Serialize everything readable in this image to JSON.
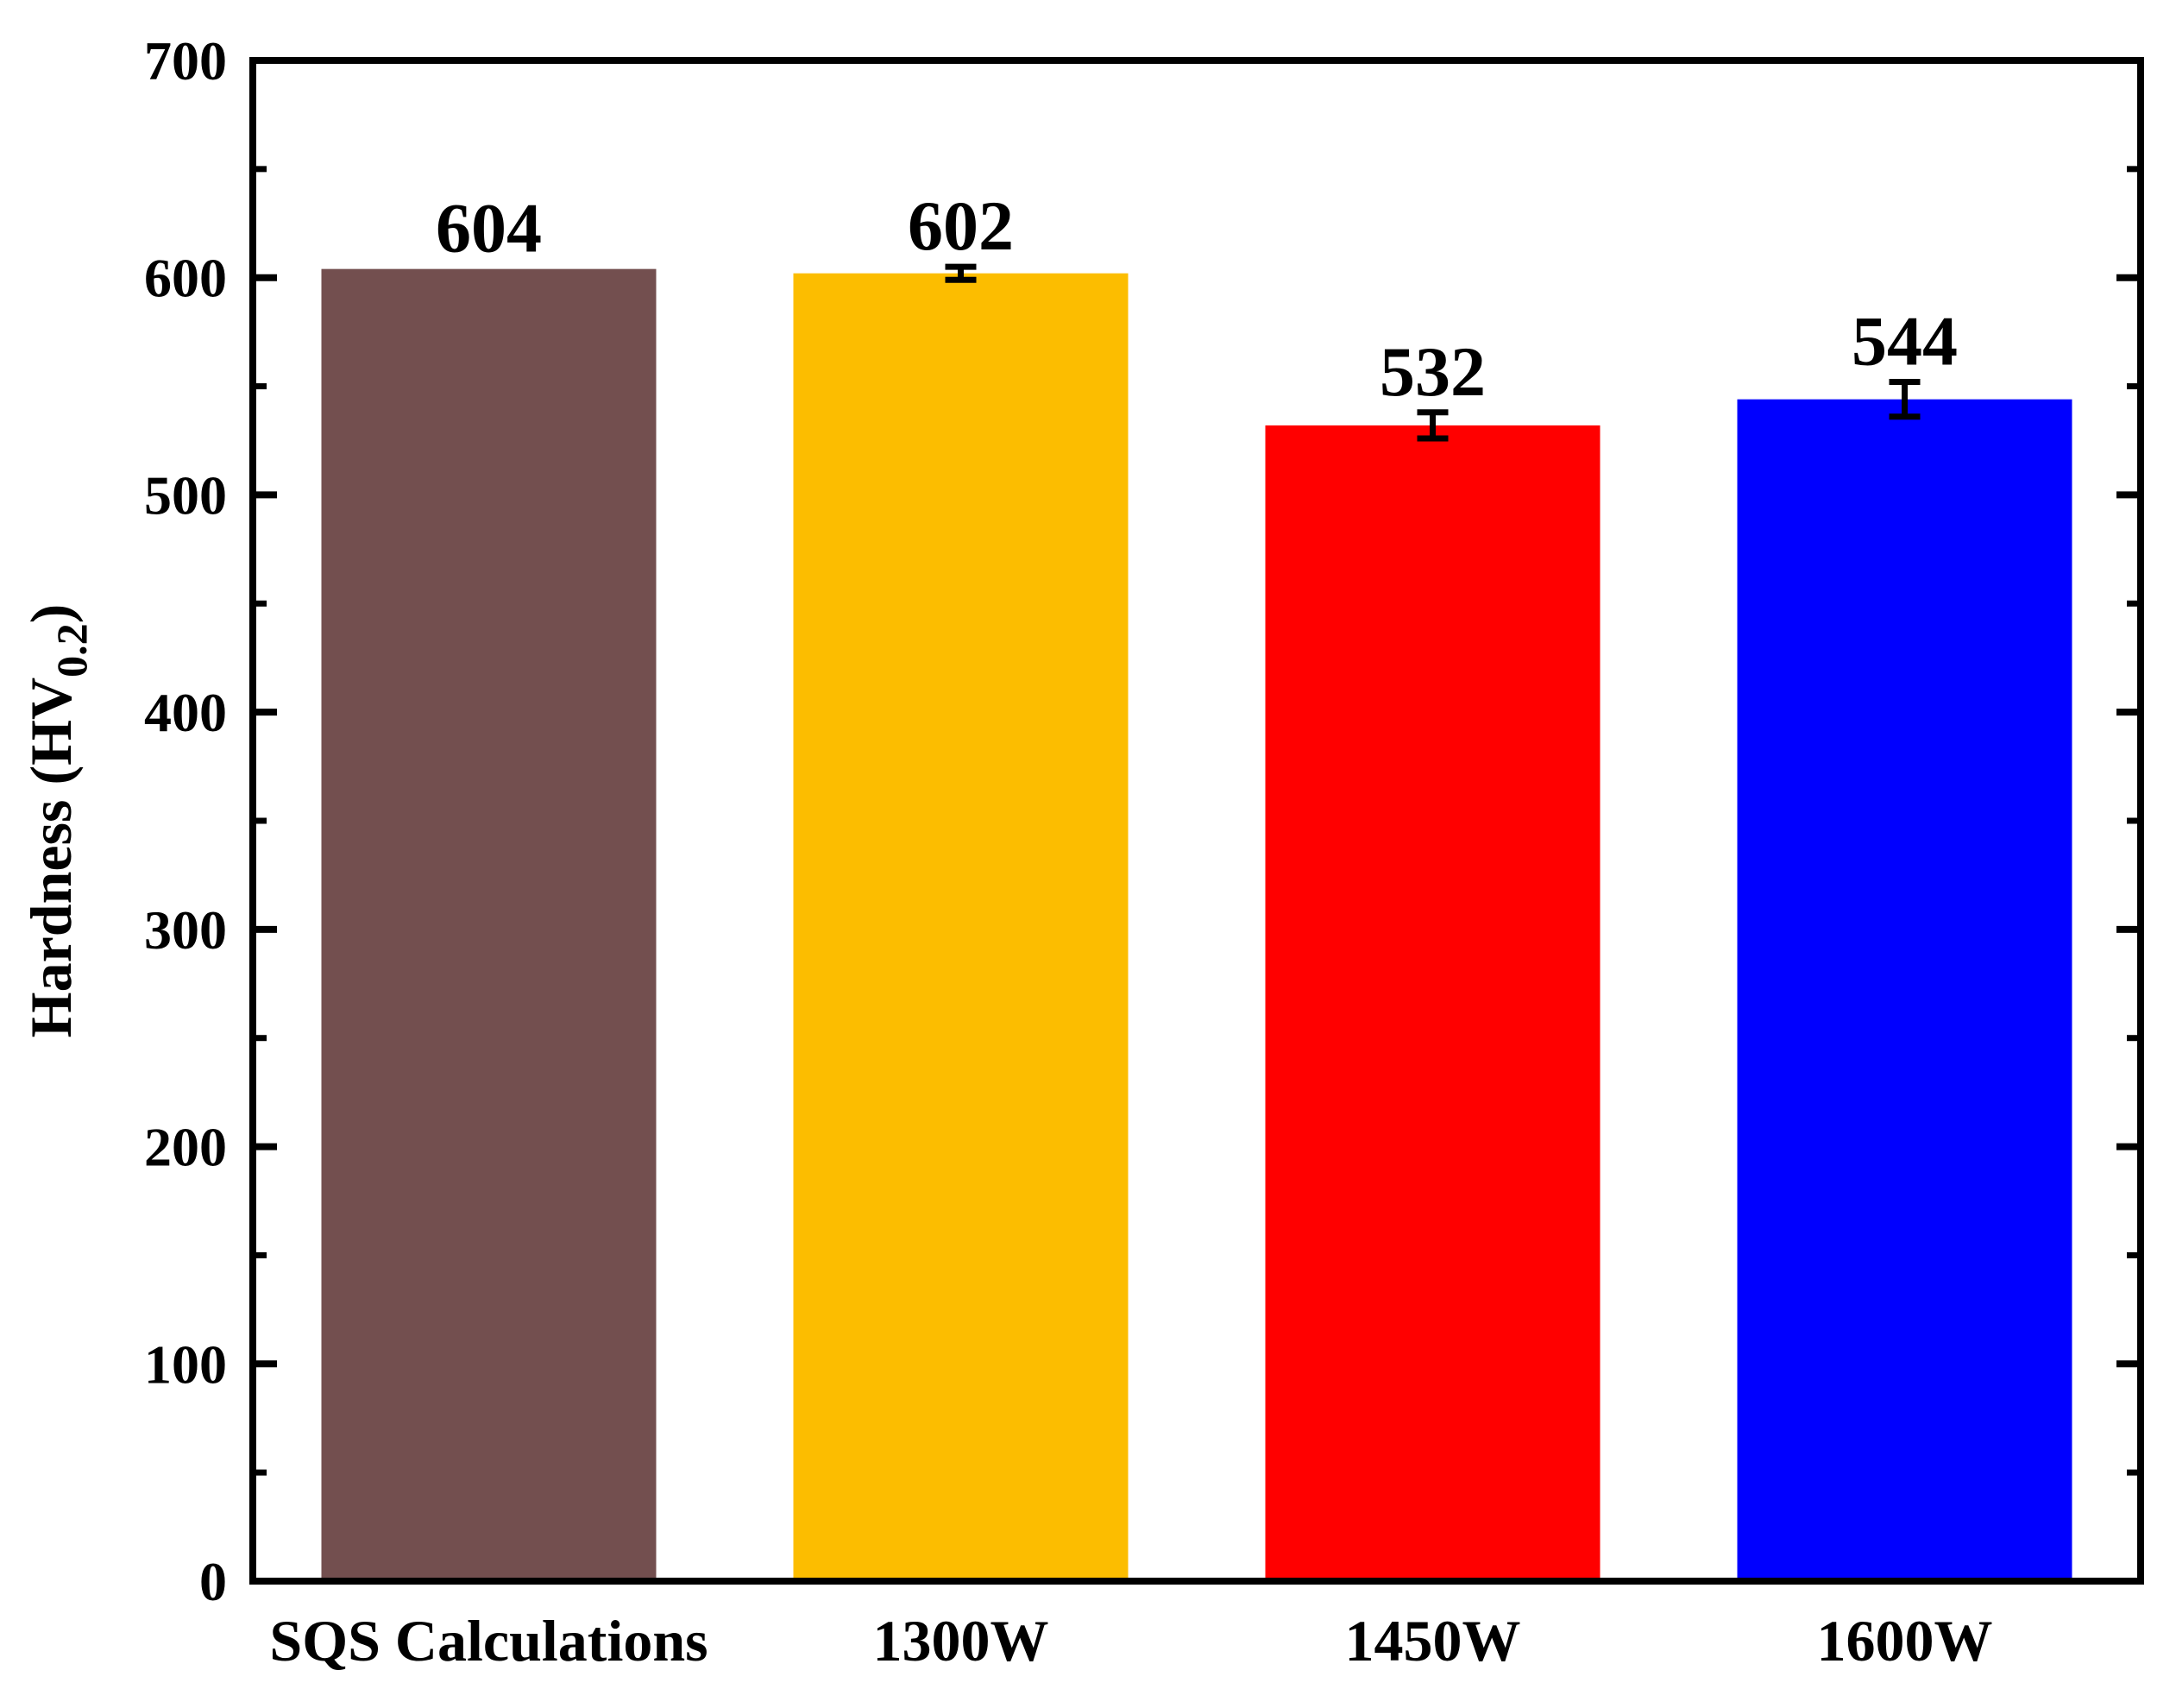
{
  "chart_data": {
    "type": "bar",
    "categories": [
      "SQS Calculations",
      "1300W",
      "1450W",
      "1600W"
    ],
    "values": [
      604,
      602,
      532,
      544
    ],
    "errors": [
      0,
      3,
      6,
      8
    ],
    "data_labels": [
      "604",
      "602",
      "532",
      "544"
    ],
    "colors": [
      "#734f4f",
      "#fcbd00",
      "#ff0000",
      "#0000ff"
    ],
    "title": "",
    "xlabel": "",
    "ylabel": "Hardness (HV0.2)",
    "ylabel_parts": {
      "main": "Hardness (HV",
      "subscript": "0.2",
      "close": ")"
    },
    "ylim": [
      0,
      700
    ],
    "yticks": [
      0,
      100,
      200,
      300,
      400,
      500,
      600,
      700
    ],
    "yticks_minor_step": 50,
    "grid": false,
    "legend": "none"
  }
}
